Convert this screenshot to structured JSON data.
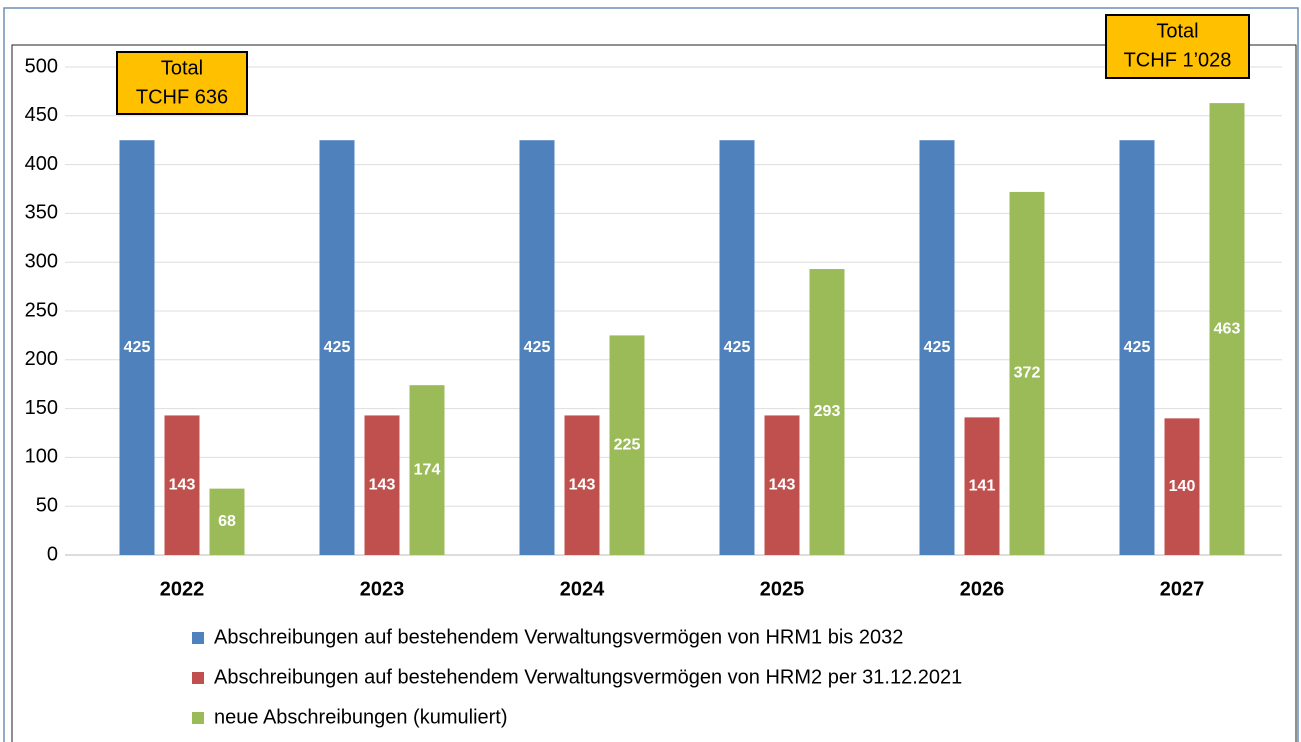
{
  "chart_data": {
    "type": "bar",
    "categories": [
      "2022",
      "2023",
      "2024",
      "2025",
      "2026",
      "2027"
    ],
    "series": [
      {
        "name": "Abschreibungen auf bestehendem Verwaltungsvermögen von HRM1 bis 2032",
        "color": "#4F81BD",
        "values": [
          425,
          425,
          425,
          425,
          425,
          425
        ]
      },
      {
        "name": "Abschreibungen auf bestehendem Verwaltungsvermögen von HRM2 per 31.12.2021",
        "color": "#C0504D",
        "values": [
          143,
          143,
          143,
          143,
          141,
          140
        ]
      },
      {
        "name": "neue Abschreibungen (kumuliert)",
        "color": "#9BBB59",
        "values": [
          68,
          174,
          225,
          293,
          372,
          463
        ]
      }
    ],
    "ylim": [
      0,
      500
    ],
    "yticks": [
      0,
      50,
      100,
      150,
      200,
      250,
      300,
      350,
      400,
      450,
      500
    ],
    "grid": true,
    "annotations": [
      {
        "category": "2022",
        "lines": [
          "Total",
          "TCHF 636"
        ],
        "color": "#FFC000"
      },
      {
        "category": "2027",
        "lines": [
          "Total",
          "TCHF 1’028"
        ],
        "color": "#FFC000"
      }
    ]
  }
}
